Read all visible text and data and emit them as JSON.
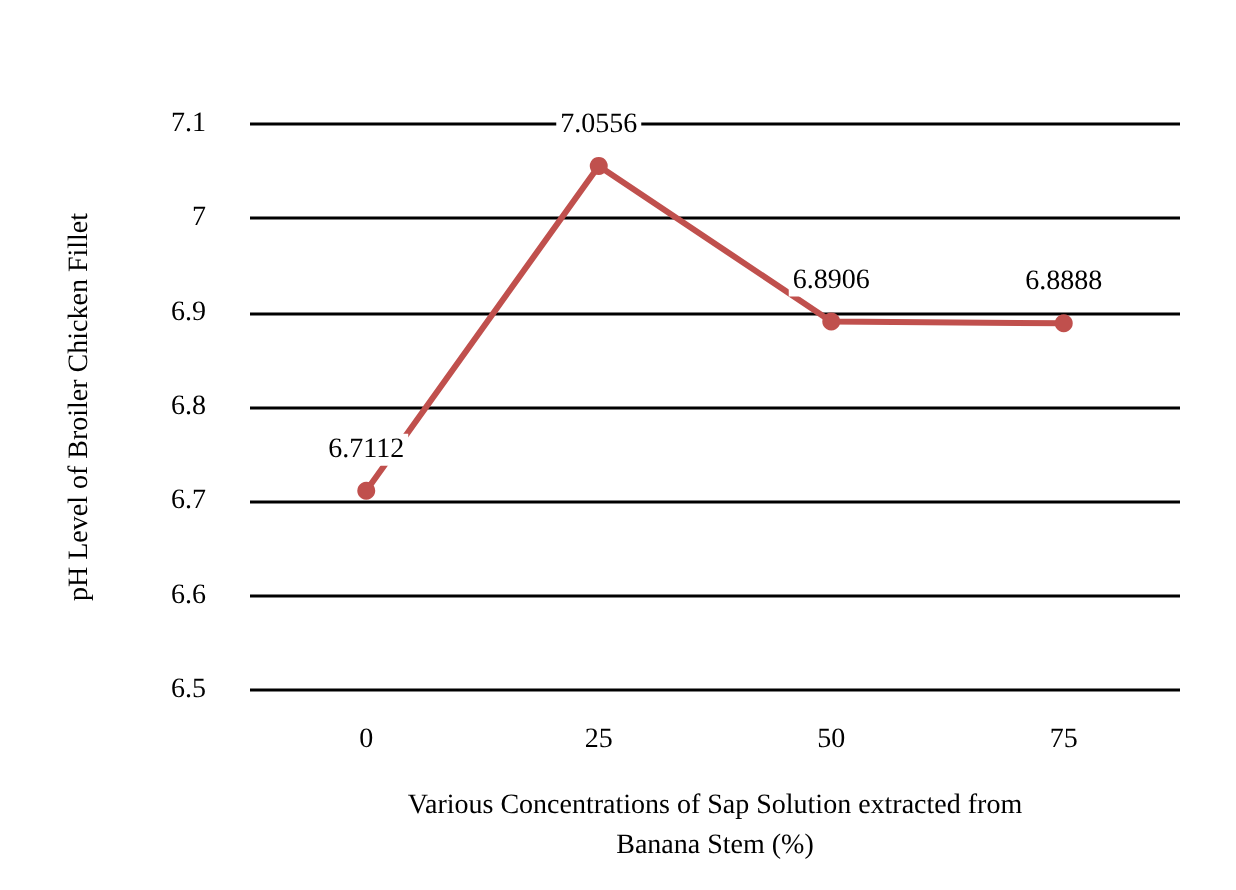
{
  "chart_data": {
    "type": "line",
    "xlabel": "Various Concentrations of Sap Solution extracted from\nBanana Stem (%)",
    "ylabel": "pH Level of Broiler Chicken Fillet",
    "categories": [
      "0",
      "25",
      "50",
      "75"
    ],
    "series": [
      {
        "color": "#c0504d",
        "values": [
          6.7112,
          7.0556,
          6.8906,
          6.8888
        ]
      }
    ],
    "ylim": [
      6.5,
      7.1
    ],
    "yticks": [
      6.5,
      6.6,
      6.7,
      6.8,
      6.9,
      7,
      7.1
    ],
    "grid": "y",
    "marker": "circle",
    "line_style": "solid",
    "data_labels": true
  }
}
